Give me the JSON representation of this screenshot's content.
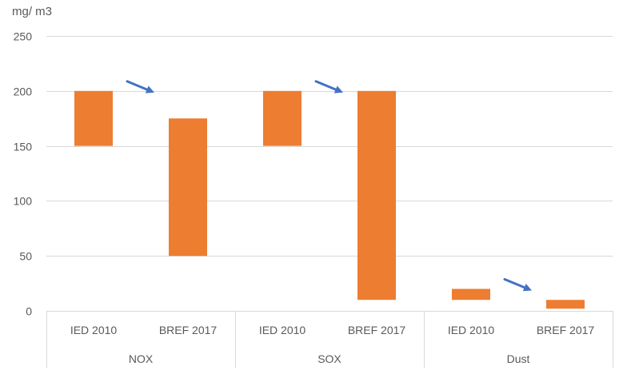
{
  "chart_data": {
    "type": "bar",
    "subtype": "floating-range",
    "ylabel": "mg/ m3",
    "ylim": [
      0,
      250
    ],
    "yticks": [
      0,
      50,
      100,
      150,
      200,
      250
    ],
    "grid": true,
    "groups": [
      {
        "name": "NOX",
        "bars": [
          {
            "label": "IED 2010",
            "low": 150,
            "high": 200
          },
          {
            "label": "BREF 2017",
            "low": 50,
            "high": 175
          }
        ]
      },
      {
        "name": "SOX",
        "bars": [
          {
            "label": "IED 2010",
            "low": 150,
            "high": 200
          },
          {
            "label": "BREF 2017",
            "low": 10,
            "high": 200
          }
        ]
      },
      {
        "name": "Dust",
        "bars": [
          {
            "label": "IED 2010",
            "low": 10,
            "high": 20
          },
          {
            "label": "BREF 2017",
            "low": 2,
            "high": 10
          }
        ]
      }
    ],
    "annotations": [
      {
        "type": "arrow",
        "group": "NOX",
        "meaning": "decrease"
      },
      {
        "type": "arrow",
        "group": "SOX",
        "meaning": "decrease"
      },
      {
        "type": "arrow",
        "group": "Dust",
        "meaning": "decrease"
      }
    ],
    "colors": {
      "bar": "#ed7d31",
      "arrow": "#4472c4",
      "grid": "#d9d9d9",
      "text": "#595959"
    }
  }
}
